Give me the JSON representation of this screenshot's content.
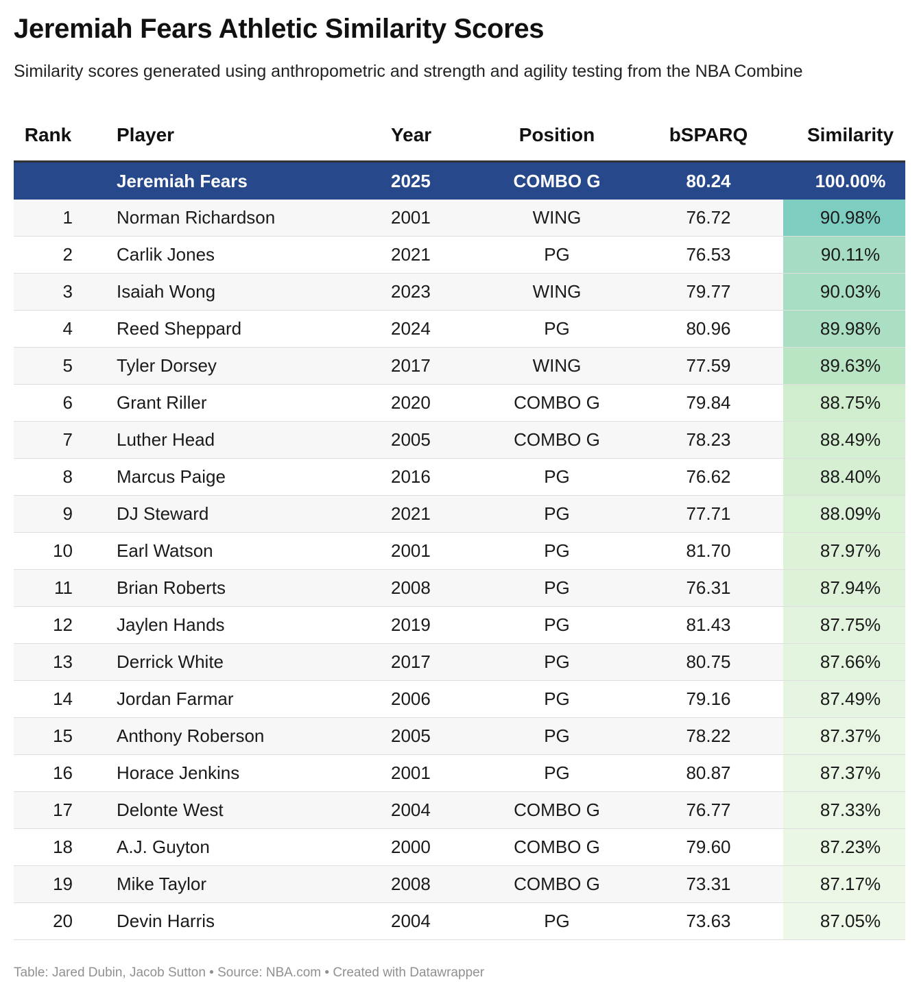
{
  "title": "Jeremiah Fears Athletic Similarity Scores",
  "subtitle": "Similarity scores generated using anthropometric and strength and agility testing from the NBA Combine",
  "footer": "Table: Jared Dubin, Jacob Sutton • Source: NBA.com • Created with Datawrapper",
  "colors": {
    "highlight_row": "#27498c",
    "scale_low": "#eef8e8",
    "scale_mid": "#c4e9c4",
    "scale_high": "#7ecdc1"
  },
  "chart_data": {
    "type": "table",
    "columns": [
      "Rank",
      "Player",
      "Year",
      "Position",
      "bSPARQ",
      "Similarity"
    ],
    "highlight": {
      "rank": "",
      "player": "Jeremiah Fears",
      "year": "2025",
      "position": "COMBO G",
      "bsparq": "80.24",
      "similarity": "100.00%"
    },
    "rows": [
      {
        "rank": "1",
        "player": "Norman Richardson",
        "year": "2001",
        "position": "WING",
        "bsparq": "76.72",
        "similarity": "90.98%",
        "sim_value": 90.98
      },
      {
        "rank": "2",
        "player": "Carlik Jones",
        "year": "2021",
        "position": "PG",
        "bsparq": "76.53",
        "similarity": "90.11%",
        "sim_value": 90.11
      },
      {
        "rank": "3",
        "player": "Isaiah Wong",
        "year": "2023",
        "position": "WING",
        "bsparq": "79.77",
        "similarity": "90.03%",
        "sim_value": 90.03
      },
      {
        "rank": "4",
        "player": "Reed Sheppard",
        "year": "2024",
        "position": "PG",
        "bsparq": "80.96",
        "similarity": "89.98%",
        "sim_value": 89.98
      },
      {
        "rank": "5",
        "player": "Tyler Dorsey",
        "year": "2017",
        "position": "WING",
        "bsparq": "77.59",
        "similarity": "89.63%",
        "sim_value": 89.63
      },
      {
        "rank": "6",
        "player": "Grant Riller",
        "year": "2020",
        "position": "COMBO G",
        "bsparq": "79.84",
        "similarity": "88.75%",
        "sim_value": 88.75
      },
      {
        "rank": "7",
        "player": "Luther Head",
        "year": "2005",
        "position": "COMBO G",
        "bsparq": "78.23",
        "similarity": "88.49%",
        "sim_value": 88.49
      },
      {
        "rank": "8",
        "player": "Marcus Paige",
        "year": "2016",
        "position": "PG",
        "bsparq": "76.62",
        "similarity": "88.40%",
        "sim_value": 88.4
      },
      {
        "rank": "9",
        "player": "DJ Steward",
        "year": "2021",
        "position": "PG",
        "bsparq": "77.71",
        "similarity": "88.09%",
        "sim_value": 88.09
      },
      {
        "rank": "10",
        "player": "Earl Watson",
        "year": "2001",
        "position": "PG",
        "bsparq": "81.70",
        "similarity": "87.97%",
        "sim_value": 87.97
      },
      {
        "rank": "11",
        "player": "Brian Roberts",
        "year": "2008",
        "position": "PG",
        "bsparq": "76.31",
        "similarity": "87.94%",
        "sim_value": 87.94
      },
      {
        "rank": "12",
        "player": "Jaylen Hands",
        "year": "2019",
        "position": "PG",
        "bsparq": "81.43",
        "similarity": "87.75%",
        "sim_value": 87.75
      },
      {
        "rank": "13",
        "player": "Derrick White",
        "year": "2017",
        "position": "PG",
        "bsparq": "80.75",
        "similarity": "87.66%",
        "sim_value": 87.66
      },
      {
        "rank": "14",
        "player": "Jordan Farmar",
        "year": "2006",
        "position": "PG",
        "bsparq": "79.16",
        "similarity": "87.49%",
        "sim_value": 87.49
      },
      {
        "rank": "15",
        "player": "Anthony Roberson",
        "year": "2005",
        "position": "PG",
        "bsparq": "78.22",
        "similarity": "87.37%",
        "sim_value": 87.37
      },
      {
        "rank": "16",
        "player": "Horace Jenkins",
        "year": "2001",
        "position": "PG",
        "bsparq": "80.87",
        "similarity": "87.37%",
        "sim_value": 87.37
      },
      {
        "rank": "17",
        "player": "Delonte West",
        "year": "2004",
        "position": "COMBO G",
        "bsparq": "76.77",
        "similarity": "87.33%",
        "sim_value": 87.33
      },
      {
        "rank": "18",
        "player": "A.J. Guyton",
        "year": "2000",
        "position": "COMBO G",
        "bsparq": "79.60",
        "similarity": "87.23%",
        "sim_value": 87.23
      },
      {
        "rank": "19",
        "player": "Mike Taylor",
        "year": "2008",
        "position": "COMBO G",
        "bsparq": "73.31",
        "similarity": "87.17%",
        "sim_value": 87.17
      },
      {
        "rank": "20",
        "player": "Devin Harris",
        "year": "2004",
        "position": "PG",
        "bsparq": "73.63",
        "similarity": "87.05%",
        "sim_value": 87.05
      }
    ]
  }
}
